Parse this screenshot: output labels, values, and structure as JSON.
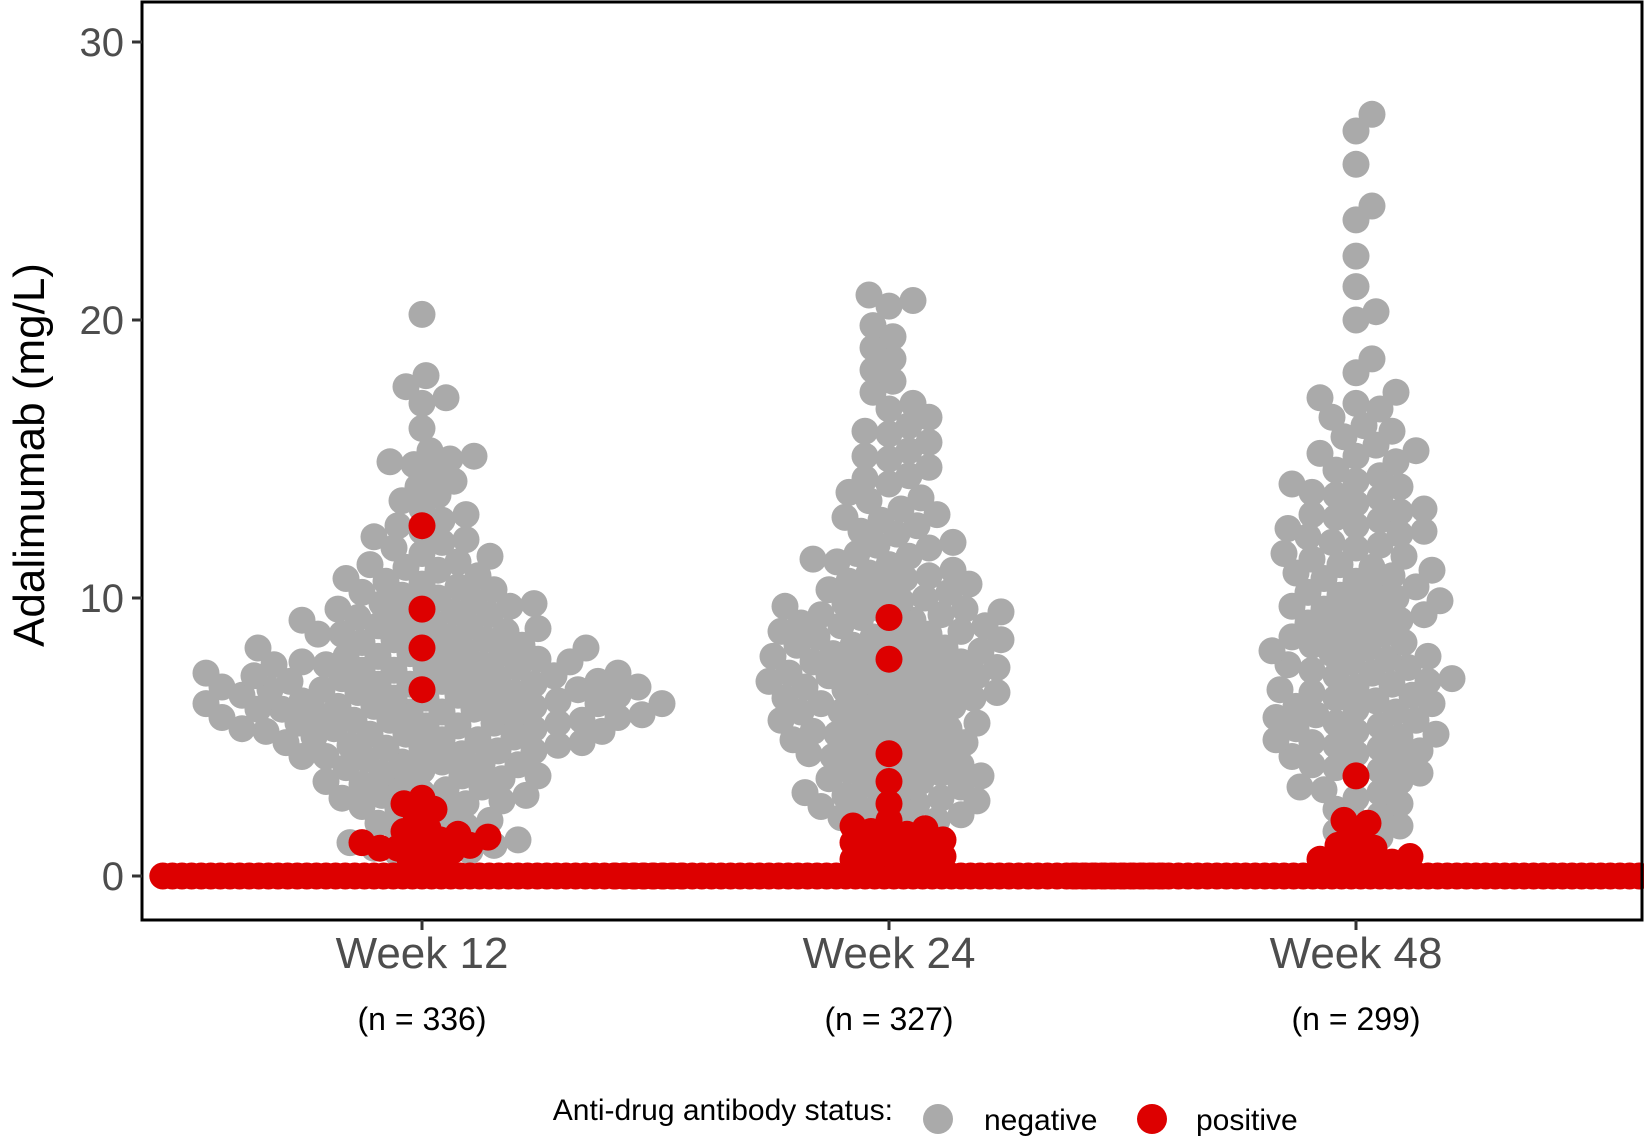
{
  "chart_data": {
    "type": "scatter",
    "subtype": "beeswarm",
    "title": "",
    "xlabel": "",
    "ylabel": "Adalimumab (mg/L)",
    "ylim": [
      -1.5,
      31.5
    ],
    "yticks": [
      0,
      10,
      20,
      30
    ],
    "grid": false,
    "colors": {
      "negative": "#aaaaaa",
      "positive": "#dd0000",
      "axis": "#000000",
      "tick_text": "#4d4d4d"
    },
    "categories": [
      {
        "label": "Week 12",
        "n_label": "(n = 336)"
      },
      {
        "label": "Week 24",
        "n_label": "(n = 327)"
      },
      {
        "label": "Week 48",
        "n_label": "(n = 299)"
      }
    ],
    "legend": {
      "position": "bottom",
      "title": "Anti-drug antibody status:",
      "entries": [
        {
          "key": "negative",
          "label": "negative"
        },
        {
          "key": "positive",
          "label": "positive"
        }
      ]
    },
    "series": [
      {
        "name": "Week 12",
        "negative_values": [
          20.2,
          18.0,
          17.6,
          17.2,
          17.0,
          16.1,
          15.3,
          15.1,
          15.0,
          14.9,
          14.8,
          14.5,
          14.2,
          14.0,
          13.7,
          13.5,
          13.2,
          13.0,
          12.8,
          12.6,
          12.4,
          12.2,
          12.0,
          11.8,
          11.6,
          11.5,
          11.3,
          11.1,
          11.0,
          10.8,
          10.7,
          10.5,
          10.4,
          10.2,
          10.1,
          10.0,
          9.9,
          9.8,
          9.7,
          9.6,
          9.5,
          9.4,
          9.3,
          9.2,
          9.1,
          9.0,
          8.9,
          8.8,
          8.7,
          8.7,
          8.6,
          8.5,
          8.4,
          8.3,
          8.2,
          8.1,
          8.0,
          8.0,
          7.9,
          7.8,
          7.8,
          7.7,
          7.6,
          7.6,
          7.5,
          7.4,
          7.4,
          7.3,
          7.3,
          7.2,
          7.1,
          7.1,
          7.0,
          7.0,
          6.9,
          6.9,
          6.8,
          6.8,
          6.7,
          6.7,
          6.6,
          6.6,
          6.5,
          6.5,
          6.4,
          6.4,
          6.3,
          6.3,
          6.2,
          6.2,
          6.1,
          6.1,
          6.0,
          6.0,
          5.9,
          5.9,
          5.8,
          5.8,
          5.7,
          5.7,
          5.6,
          5.6,
          5.5,
          5.5,
          5.4,
          5.4,
          5.3,
          5.3,
          5.2,
          5.1,
          5.1,
          5.0,
          5.0,
          4.9,
          4.8,
          4.8,
          4.7,
          4.6,
          4.6,
          4.5,
          4.4,
          4.3,
          4.3,
          4.2,
          4.1,
          4.0,
          3.9,
          3.8,
          3.7,
          3.6,
          3.5,
          3.4,
          3.3,
          3.2,
          3.1,
          3.0,
          2.9,
          2.8,
          2.7,
          2.6,
          2.5,
          2.4,
          2.3,
          2.2,
          2.0,
          1.9,
          1.8,
          1.6,
          1.5,
          1.4,
          1.3,
          1.2,
          1.1,
          1.0,
          0.9,
          0.8,
          0.7,
          0.6,
          6.3,
          6.7,
          7.2,
          5.8,
          5.2,
          6.9,
          7.5,
          8.3,
          4.9,
          5.6,
          6.1,
          6.5,
          7.0,
          7.7,
          8.5,
          9.0,
          9.6,
          10.3,
          11.2,
          12.1,
          4.1,
          4.5,
          5.3,
          6.0,
          6.8,
          7.3,
          7.9,
          8.8,
          9.3,
          10.6,
          2.9,
          3.3,
          3.6,
          4.0,
          4.7,
          5.5,
          6.2,
          7.6,
          8.2,
          9.8
        ],
        "positive_values": [
          12.6,
          9.6,
          8.2,
          6.7,
          2.8,
          2.6,
          2.4,
          2.2,
          1.7,
          1.6,
          1.5,
          1.4,
          1.3,
          1.2,
          1.2,
          1.1,
          1.0,
          1.0,
          0.9,
          0.8,
          0.6,
          0.4,
          0.2
        ],
        "zero_positive_count": 55
      },
      {
        "name": "Week 24",
        "negative_values": [
          20.9,
          20.7,
          20.5,
          19.8,
          19.4,
          19.0,
          18.6,
          18.2,
          17.8,
          17.4,
          17.0,
          16.8,
          16.5,
          16.2,
          15.9,
          15.6,
          15.3,
          15.0,
          14.7,
          14.4,
          14.1,
          13.8,
          13.5,
          13.2,
          12.9,
          12.6,
          12.3,
          12.0,
          11.8,
          11.6,
          11.4,
          11.2,
          11.0,
          10.8,
          10.6,
          10.4,
          10.3,
          10.1,
          10.0,
          9.9,
          9.7,
          9.6,
          9.5,
          9.4,
          9.3,
          9.2,
          9.1,
          9.0,
          8.9,
          8.8,
          8.7,
          8.6,
          8.5,
          8.4,
          8.3,
          8.2,
          8.1,
          8.0,
          7.9,
          7.8,
          7.7,
          7.7,
          7.6,
          7.5,
          7.4,
          7.3,
          7.2,
          7.2,
          7.1,
          7.0,
          6.9,
          6.8,
          6.7,
          6.6,
          6.5,
          6.4,
          6.3,
          6.2,
          6.1,
          6.0,
          5.9,
          5.8,
          5.7,
          5.6,
          5.5,
          5.4,
          5.3,
          5.2,
          5.1,
          5.0,
          4.9,
          4.8,
          4.7,
          4.6,
          4.5,
          4.4,
          4.3,
          4.2,
          4.1,
          4.0,
          3.9,
          3.8,
          3.7,
          3.6,
          3.5,
          3.4,
          3.3,
          3.2,
          3.1,
          3.0,
          2.9,
          2.8,
          2.7,
          2.6,
          2.5,
          2.4,
          2.3,
          2.2,
          2.1,
          2.0,
          1.9,
          1.8,
          1.6,
          1.4,
          1.2,
          1.0,
          0.8,
          0.5,
          10.9,
          11.5,
          12.4,
          13.0,
          9.8,
          8.3,
          7.5,
          6.6,
          5.9,
          9.0,
          10.2,
          8.6,
          7.9,
          7.3,
          6.8,
          6.2,
          5.5,
          4.9,
          8.1,
          9.4,
          10.7,
          11.9,
          12.8,
          13.6,
          14.3,
          15.1,
          16.0,
          7.0,
          6.4,
          5.2,
          4.4,
          3.6,
          2.8,
          8.8,
          9.6,
          10.5,
          11.3
        ],
        "positive_values": [
          9.3,
          7.8,
          4.4,
          3.4,
          2.6,
          2.0,
          1.8,
          1.7,
          1.6,
          1.5,
          1.4,
          1.3,
          1.2,
          1.1,
          1.0,
          0.9,
          0.8,
          0.7,
          0.6,
          0.5,
          0.4,
          0.3,
          0.2
        ],
        "zero_positive_count": 58
      },
      {
        "name": "Week 48",
        "negative_values": [
          27.4,
          26.8,
          25.6,
          24.1,
          23.6,
          22.3,
          21.2,
          20.3,
          20.0,
          18.6,
          18.1,
          17.4,
          17.2,
          17.0,
          16.8,
          16.5,
          16.2,
          16.0,
          15.8,
          15.5,
          15.3,
          15.1,
          14.9,
          14.6,
          14.4,
          14.2,
          14.0,
          13.8,
          13.6,
          13.4,
          13.2,
          13.0,
          12.8,
          12.6,
          12.4,
          12.2,
          12.0,
          11.8,
          11.6,
          11.4,
          11.2,
          11.0,
          10.8,
          10.6,
          10.4,
          10.2,
          10.0,
          9.8,
          9.6,
          9.4,
          9.2,
          9.0,
          8.8,
          8.6,
          8.4,
          8.2,
          8.0,
          7.8,
          7.6,
          7.4,
          7.2,
          7.0,
          6.8,
          6.6,
          6.4,
          6.2,
          6.0,
          5.8,
          5.6,
          5.4,
          5.2,
          5.0,
          4.8,
          4.6,
          4.4,
          4.2,
          4.0,
          3.8,
          3.6,
          3.4,
          3.2,
          3.0,
          2.8,
          2.6,
          2.4,
          2.2,
          2.0,
          1.8,
          1.6,
          1.4,
          1.2,
          12.3,
          11.5,
          10.7,
          9.9,
          9.1,
          8.3,
          7.5,
          6.7,
          5.9,
          5.1,
          4.3,
          13.1,
          14.1,
          15.2,
          12.9,
          11.9,
          10.9,
          9.7,
          8.7,
          7.7,
          6.9,
          6.1,
          5.3,
          4.5,
          3.7,
          11.1,
          10.3,
          9.5,
          8.5,
          7.9,
          7.1,
          6.3,
          5.5,
          4.7,
          3.9,
          3.1,
          13.7,
          12.5,
          10.1,
          9.3,
          8.1,
          7.3,
          6.5,
          5.7,
          4.9
        ],
        "positive_values": [
          3.6,
          2.0,
          1.9,
          1.5,
          1.1,
          1.0,
          0.8,
          0.7,
          0.6,
          0.5,
          0.4,
          0.3,
          0.2
        ],
        "zero_positive_count": 60
      }
    ]
  }
}
